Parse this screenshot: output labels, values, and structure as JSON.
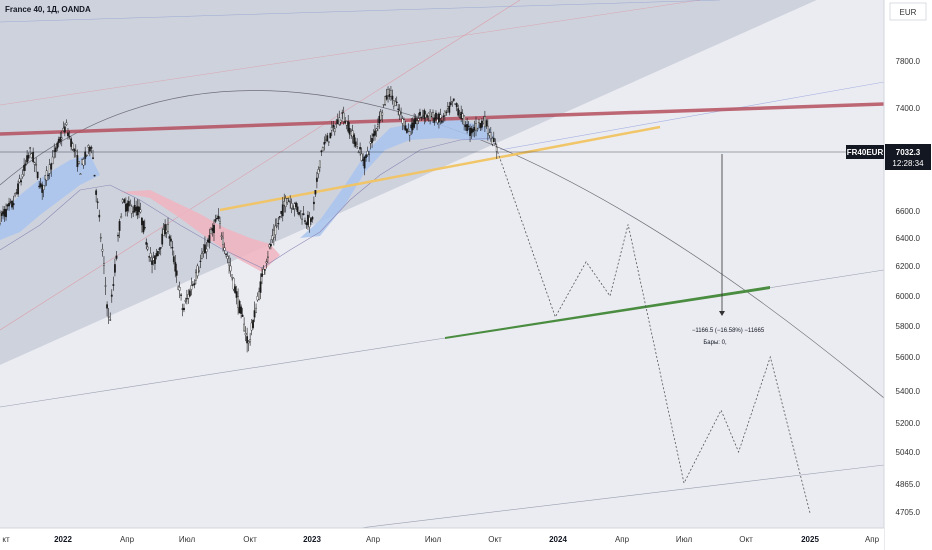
{
  "header": {
    "symbol_title": "France 40, 1Д, OANDA"
  },
  "axis": {
    "currency": "EUR"
  },
  "price_tag": {
    "symbol": "FR40EUR",
    "price": "7032.3",
    "countdown": "12:28:34"
  },
  "measurement": {
    "line1": "−1166.5 (−16.58%) −11665",
    "line2": "Бары: 0,"
  },
  "colors": {
    "candle": "#1a1a1a",
    "resistance": "#b5505f",
    "support_yellow": "#f2c462",
    "support_green": "#4a8c40",
    "channel_fill": "#c7cbd8",
    "blue_band": "#a9c4ee",
    "red_band": "#f0b4c0",
    "price_tag_bg": "#131722"
  },
  "chart_data": {
    "type": "candlestick",
    "title": "France 40, 1Д, OANDA",
    "y_axis": {
      "ticks": [
        4705.0,
        4865.0,
        5040.0,
        5200.0,
        5400.0,
        5600.0,
        5800.0,
        6000.0,
        6200.0,
        6400.0,
        6600.0,
        7400.0,
        7800.0
      ],
      "tick_labels": [
        "4705.0",
        "4865.0",
        "5040.0",
        "5200.0",
        "5400.0",
        "5600.0",
        "5800.0",
        "6000.0",
        "6200.0",
        "6400.0",
        "6600.0",
        "7400.0",
        "7800.0"
      ]
    },
    "x_axis": {
      "tick_labels": [
        "кт",
        "2022",
        "Апр",
        "Июл",
        "Окт",
        "2023",
        "Апр",
        "Июл",
        "Окт",
        "2024",
        "Апр",
        "Июл",
        "Окт",
        "2025",
        "Апр"
      ],
      "bold_labels": [
        "2022",
        "2023",
        "2024",
        "2025"
      ]
    },
    "price_path": [
      [
        "2021-10-01",
        6550
      ],
      [
        "2021-10-20",
        6650
      ],
      [
        "2021-11-15",
        7050
      ],
      [
        "2021-12-01",
        6750
      ],
      [
        "2022-01-05",
        7250
      ],
      [
        "2022-01-25",
        6900
      ],
      [
        "2022-02-10",
        7100
      ],
      [
        "2022-03-07",
        5800
      ],
      [
        "2022-03-25",
        6650
      ],
      [
        "2022-04-20",
        6600
      ],
      [
        "2022-05-10",
        6200
      ],
      [
        "2022-06-01",
        6500
      ],
      [
        "2022-06-25",
        5900
      ],
      [
        "2022-08-15",
        6550
      ],
      [
        "2022-09-01",
        6200
      ],
      [
        "2022-09-29",
        5680
      ],
      [
        "2022-10-25",
        6250
      ],
      [
        "2022-11-25",
        6700
      ],
      [
        "2022-12-31",
        6500
      ],
      [
        "2023-01-15",
        7050
      ],
      [
        "2023-02-15",
        7350
      ],
      [
        "2023-03-20",
        6950
      ],
      [
        "2023-04-25",
        7550
      ],
      [
        "2023-05-25",
        7200
      ],
      [
        "2023-06-15",
        7350
      ],
      [
        "2023-07-15",
        7300
      ],
      [
        "2023-08-01",
        7450
      ],
      [
        "2023-08-25",
        7200
      ],
      [
        "2023-09-15",
        7300
      ],
      [
        "2023-10-05",
        7032
      ]
    ],
    "horizontal_lines": [
      {
        "price": 7032.3,
        "label": "FR40EUR 7032.3"
      }
    ],
    "projection_path": [
      [
        "2023-10-05",
        7032
      ],
      [
        "2023-12-28",
        5860
      ],
      [
        "2024-02-10",
        6230
      ],
      [
        "2024-03-15",
        6000
      ],
      [
        "2024-04-10",
        6500
      ],
      [
        "2024-07-01",
        4870
      ],
      [
        "2024-08-25",
        5280
      ],
      [
        "2024-09-20",
        5040
      ],
      [
        "2024-11-05",
        5600
      ],
      [
        "2025-01-01",
        4700
      ]
    ],
    "measurement": {
      "from": 7032.3,
      "to": 5865.8,
      "change": "−1166.5 (−16.58%) −11665",
      "bars": "Бары: 0,"
    },
    "drawings": [
      "resistance trendline",
      "rising support trendline",
      "ascending channel",
      "arc",
      "projection path"
    ]
  }
}
